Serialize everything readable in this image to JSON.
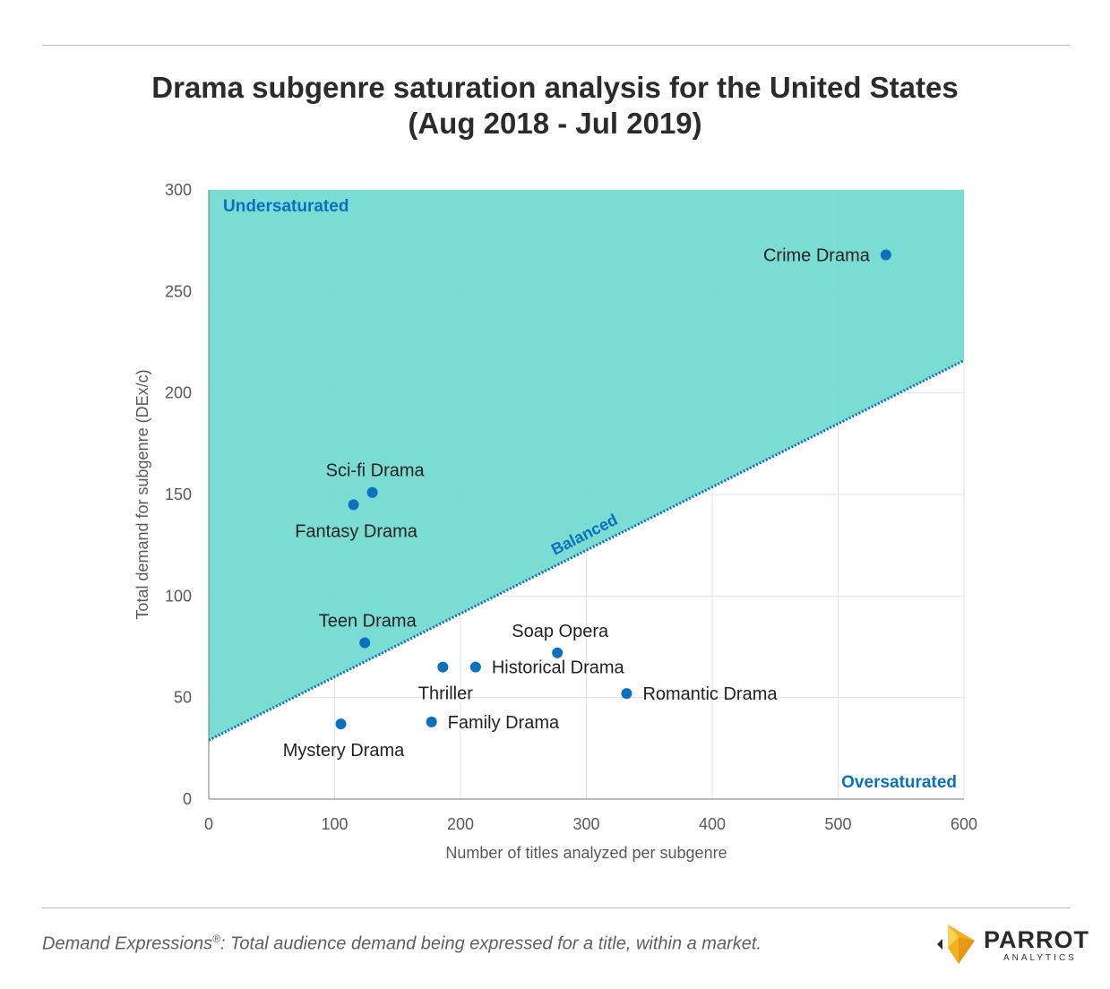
{
  "page": {
    "title_line1": "Drama subgenre saturation analysis for the United States",
    "title_line2": "(Aug 2018 - Jul 2019)",
    "footnote_term": "Demand Expressions",
    "footnote_mark": "®",
    "footnote_rest": ":  Total audience demand being expressed for a title, within a market.",
    "logo_text": "PARROT",
    "logo_subtext": "ANALYTICS"
  },
  "chart_data": {
    "type": "scatter",
    "xlabel": "Number of titles analyzed per subgenre",
    "ylabel": "Total demand for subgenre (DEx/c)",
    "xlim": [
      0,
      600
    ],
    "ylim": [
      0,
      300
    ],
    "xticks": [
      0,
      100,
      200,
      300,
      400,
      500,
      600
    ],
    "yticks": [
      0,
      50,
      100,
      150,
      200,
      250,
      300
    ],
    "grid": true,
    "balanced_line": {
      "label": "Balanced",
      "x": [
        0,
        600
      ],
      "y": [
        29,
        216
      ]
    },
    "region_labels": {
      "upper": "Undersaturated",
      "lower": "Oversaturated"
    },
    "colors": {
      "fill": "#70D9D0",
      "point": "#0A70C0",
      "line": "#0A70C0",
      "region_label": "#0A70C0",
      "axis": "#777777"
    },
    "points": [
      {
        "name": "Crime Drama",
        "x": 538,
        "y": 268,
        "label_pos": "left"
      },
      {
        "name": "Sci-fi Drama",
        "x": 130,
        "y": 151,
        "label_pos": "above"
      },
      {
        "name": "Fantasy Drama",
        "x": 115,
        "y": 145,
        "label_pos": "below"
      },
      {
        "name": "Teen Drama",
        "x": 124,
        "y": 77,
        "label_pos": "above"
      },
      {
        "name": "Soap Opera",
        "x": 277,
        "y": 72,
        "label_pos": "above"
      },
      {
        "name": "Thriller",
        "x": 186,
        "y": 65,
        "label_pos": "below"
      },
      {
        "name": "Historical Drama",
        "x": 212,
        "y": 65,
        "label_pos": "right"
      },
      {
        "name": "Romantic Drama",
        "x": 332,
        "y": 52,
        "label_pos": "right"
      },
      {
        "name": "Family Drama",
        "x": 177,
        "y": 38,
        "label_pos": "right"
      },
      {
        "name": "Mystery Drama",
        "x": 105,
        "y": 37,
        "label_pos": "below"
      }
    ]
  }
}
